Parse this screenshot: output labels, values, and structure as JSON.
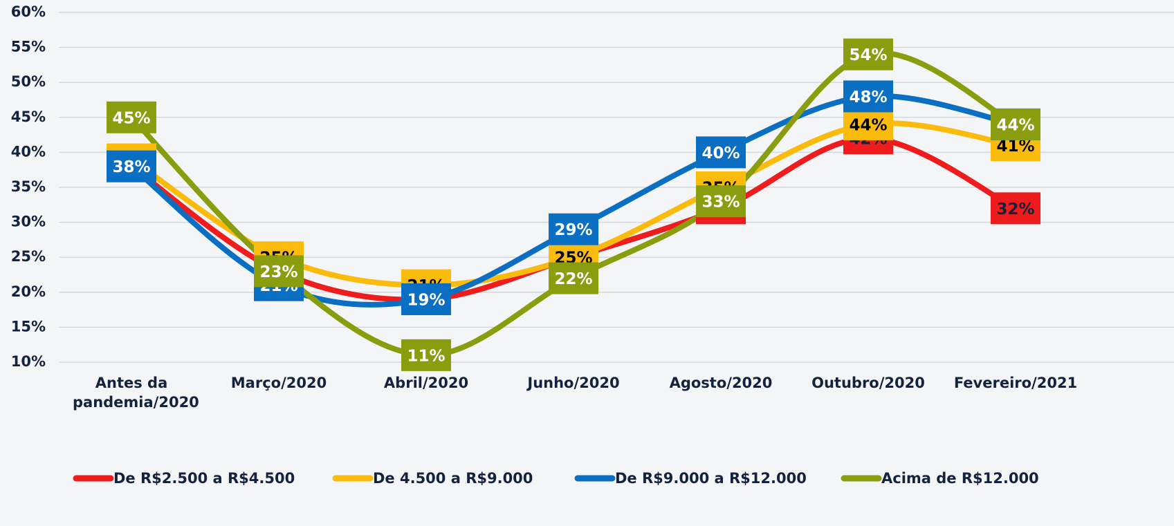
{
  "chart_data": {
    "type": "line",
    "categories": [
      "Antes da pandemia/2020",
      "Março/2020",
      "Abril/2020",
      "Junho/2020",
      "Agosto/2020",
      "Outubro/2020",
      "Fevereiro/2021"
    ],
    "series": [
      {
        "name": "De R$2.500 a R$4.500",
        "color": "#ee1c1c",
        "values": [
          38,
          23,
          19,
          25,
          32,
          42,
          32
        ],
        "value_labels": [
          "38%",
          "23%",
          "19%",
          "25%",
          "32%",
          "42%",
          "32%"
        ]
      },
      {
        "name": "De 4.500 a R$9.000",
        "color": "#fbbb0d",
        "values": [
          39,
          25,
          21,
          25,
          35,
          44,
          41
        ],
        "value_labels": [
          "39%",
          "25%",
          "21%",
          "25%",
          "35%",
          "44%",
          "41%"
        ]
      },
      {
        "name": "De R$9.000 a R$12.000",
        "color": "#0a6fc2",
        "values": [
          38,
          21,
          19,
          29,
          40,
          48,
          44
        ],
        "value_labels": [
          "38%",
          "21%",
          "19%",
          "29%",
          "40%",
          "48%",
          "44%"
        ]
      },
      {
        "name": "Acima de R$12.000",
        "color": "#8a9d0e",
        "values": [
          45,
          23,
          11,
          22,
          33,
          54,
          44
        ],
        "value_labels": [
          "45%",
          "23%",
          "11%",
          "22%",
          "33%",
          "54%",
          "44%"
        ]
      }
    ],
    "ylim": [
      10,
      60
    ],
    "yticks": [
      {
        "value": 10,
        "label": "10%"
      },
      {
        "value": 15,
        "label": "15%"
      },
      {
        "value": 20,
        "label": "20%"
      },
      {
        "value": 25,
        "label": "25%"
      },
      {
        "value": 30,
        "label": "30%"
      },
      {
        "value": 35,
        "label": "35%"
      },
      {
        "value": 40,
        "label": "40%"
      },
      {
        "value": 45,
        "label": "45%"
      },
      {
        "value": 50,
        "label": "50%"
      },
      {
        "value": 55,
        "label": "55%"
      },
      {
        "value": 60,
        "label": "60%"
      }
    ],
    "grid": true,
    "legend": "bottom"
  }
}
